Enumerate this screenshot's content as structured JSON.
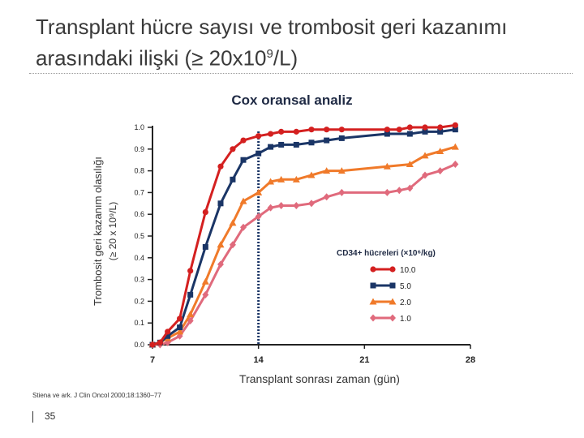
{
  "title_line1": "Transplant hücre sayısı ve trombosit geri kazanımı",
  "title_line2_prefix": "arasındaki ilişki (≥ 20x10",
  "title_line2_sup": "9",
  "title_line2_suffix": "/L)",
  "subtitle": "Cox oransal analiz",
  "citation": "Stiena ve ark. J Clin Oncol 2000;18:1360–77",
  "page_number": "35",
  "chart_data": {
    "type": "line",
    "xlabel": "Transplant sonrası zaman (gün)",
    "ylabel_line1": "Trombosit geri kazanım olasılığı",
    "ylabel_line2": "(≥ 20 x 10⁹/L)",
    "xlim": [
      7,
      28
    ],
    "ylim": [
      0,
      1
    ],
    "xticks": [
      "7",
      "14",
      "21",
      "28"
    ],
    "yticks": [
      "0.0",
      "0.1",
      "0.2",
      "0.3",
      "0.4",
      "0.5",
      "0.6",
      "0.7",
      "0.8",
      "0.9",
      "1.0"
    ],
    "reference_line_x": 14,
    "legend_title": "CD34+ hücreleri (×10⁶/kg)",
    "legend_position": "right-middle",
    "series": [
      {
        "name": "10.0",
        "color": "#d42020",
        "marker": "circle",
        "x": [
          7,
          7.5,
          8,
          8.8,
          9.5,
          10.5,
          11.5,
          12.3,
          13,
          14,
          14.8,
          15.5,
          16.5,
          17.5,
          18.5,
          19.5,
          22.5,
          23.3,
          24,
          25,
          26,
          27
        ],
        "y": [
          0.0,
          0.01,
          0.06,
          0.12,
          0.34,
          0.61,
          0.82,
          0.9,
          0.94,
          0.96,
          0.97,
          0.98,
          0.98,
          0.99,
          0.99,
          0.99,
          0.99,
          0.99,
          1.0,
          1.0,
          1.0,
          1.01
        ]
      },
      {
        "name": "5.0",
        "color": "#1a3566",
        "marker": "square",
        "x": [
          7,
          7.5,
          8,
          8.8,
          9.5,
          10.5,
          11.5,
          12.3,
          13,
          14,
          14.8,
          15.5,
          16.5,
          17.5,
          18.5,
          19.5,
          22.5,
          24,
          25,
          26,
          27
        ],
        "y": [
          0.0,
          0.01,
          0.04,
          0.08,
          0.23,
          0.45,
          0.65,
          0.76,
          0.85,
          0.88,
          0.91,
          0.92,
          0.92,
          0.93,
          0.94,
          0.95,
          0.97,
          0.97,
          0.98,
          0.98,
          0.99
        ]
      },
      {
        "name": "2.0",
        "color": "#f07a2a",
        "marker": "triangle",
        "x": [
          7,
          7.5,
          8,
          8.8,
          9.5,
          10.5,
          11.5,
          12.3,
          13,
          14,
          14.8,
          15.5,
          16.5,
          17.5,
          18.5,
          19.5,
          22.5,
          24,
          25,
          26,
          27
        ],
        "y": [
          0.0,
          0.01,
          0.03,
          0.06,
          0.14,
          0.29,
          0.46,
          0.56,
          0.66,
          0.7,
          0.75,
          0.76,
          0.76,
          0.78,
          0.8,
          0.8,
          0.82,
          0.83,
          0.87,
          0.89,
          0.91
        ]
      },
      {
        "name": "1.0",
        "color": "#e06a7c",
        "marker": "diamond",
        "x": [
          7,
          7.5,
          8,
          8.8,
          9.5,
          10.5,
          11.5,
          12.3,
          13,
          14,
          14.8,
          15.5,
          16.5,
          17.5,
          18.5,
          19.5,
          22.5,
          23.3,
          24,
          25,
          26,
          27
        ],
        "y": [
          0.0,
          0.0,
          0.01,
          0.04,
          0.11,
          0.23,
          0.37,
          0.46,
          0.54,
          0.59,
          0.63,
          0.64,
          0.64,
          0.65,
          0.68,
          0.7,
          0.7,
          0.71,
          0.72,
          0.78,
          0.8,
          0.83
        ]
      }
    ]
  }
}
